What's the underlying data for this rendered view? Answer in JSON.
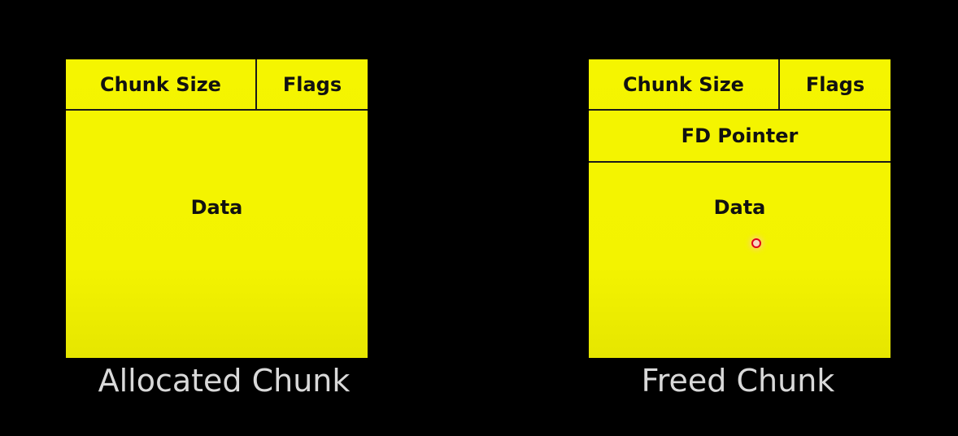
{
  "allocated_chunk": {
    "chunk_size_label": "Chunk Size",
    "flags_label": "Flags",
    "data_label": "Data",
    "caption": "Allocated Chunk"
  },
  "freed_chunk": {
    "chunk_size_label": "Chunk Size",
    "flags_label": "Flags",
    "fd_pointer_label": "FD Pointer",
    "data_label": "Data",
    "caption": "Freed Chunk"
  },
  "colors": {
    "background": "#000000",
    "chunk_fill": "#f5f500",
    "caption_text": "#d9d9d9",
    "cursor": "#e0001b"
  }
}
